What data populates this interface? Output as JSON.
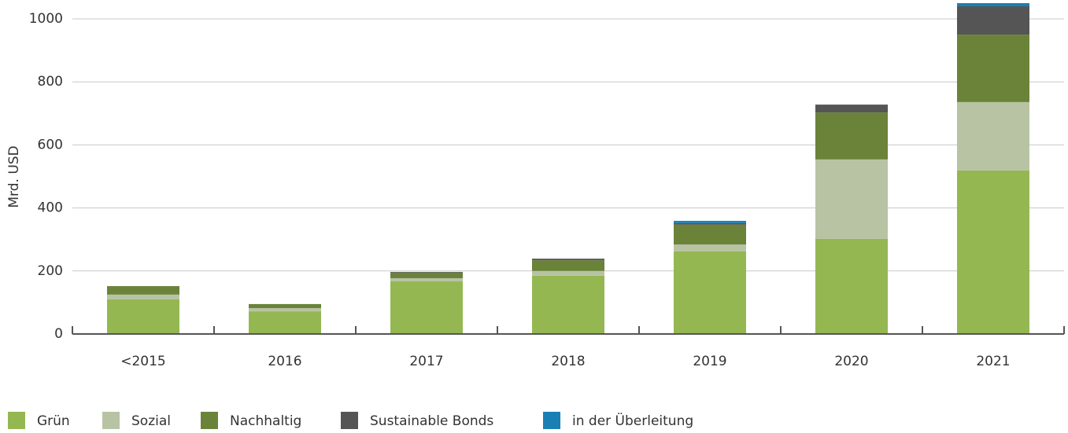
{
  "chart_data": {
    "type": "bar",
    "stacked": true,
    "y_label": "Mrd. USD",
    "categories": [
      "<2015",
      "2016",
      "2017",
      "2018",
      "2019",
      "2020",
      "2021"
    ],
    "series": [
      {
        "name": "Grün",
        "color": "#94b752",
        "values": [
          110,
          72,
          167,
          185,
          262,
          302,
          519
        ]
      },
      {
        "name": "Sozial",
        "color": "#b8c3a4",
        "values": [
          15,
          10,
          10,
          15,
          22,
          252,
          217
        ]
      },
      {
        "name": "Nachhaltig",
        "color": "#6a8339",
        "values": [
          27,
          13,
          18,
          34,
          63,
          149,
          214
        ]
      },
      {
        "name": "Sustainable Bonds",
        "color": "#555555",
        "values": [
          0,
          0,
          2,
          5,
          5,
          25,
          90
        ]
      },
      {
        "name": "in der Überleitung",
        "color": "#1a7fb5",
        "values": [
          0,
          0,
          0,
          0,
          7,
          0,
          10
        ]
      }
    ],
    "ylim": [
      0,
      1050
    ],
    "yticks": [
      0,
      200,
      400,
      600,
      800,
      1000
    ],
    "grid": true
  }
}
